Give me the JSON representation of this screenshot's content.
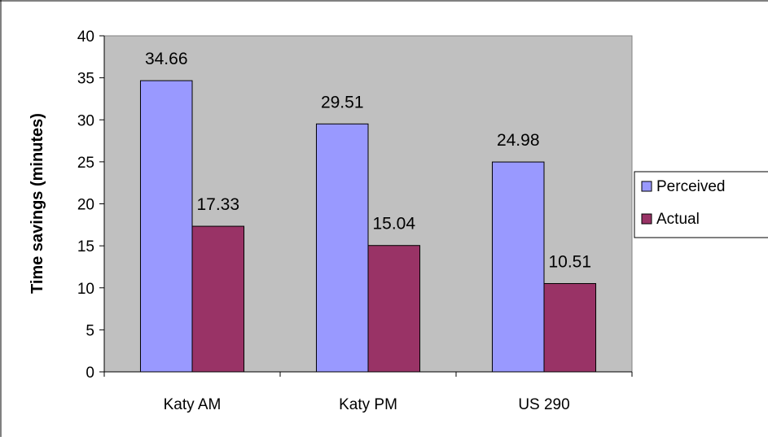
{
  "chart_data": {
    "type": "bar",
    "title": "",
    "xlabel": "",
    "ylabel": "Time savings (minutes)",
    "categories": [
      "Katy AM",
      "Katy PM",
      "US 290"
    ],
    "series": [
      {
        "name": "Perceived",
        "values": [
          34.66,
          29.51,
          24.98
        ],
        "color": "#9999ff"
      },
      {
        "name": "Actual",
        "values": [
          17.33,
          15.04,
          10.51
        ],
        "color": "#993366"
      }
    ],
    "data_labels": [
      [
        "34.66",
        "29.51",
        "24.98"
      ],
      [
        "17.33",
        "15.04",
        "10.51"
      ]
    ],
    "ylim": [
      0,
      40
    ],
    "yticks": [
      "0",
      "5",
      "10",
      "15",
      "20",
      "25",
      "30",
      "35",
      "40"
    ],
    "grid": false,
    "plot_background": "#c0c0c0",
    "legend_position": "right"
  }
}
